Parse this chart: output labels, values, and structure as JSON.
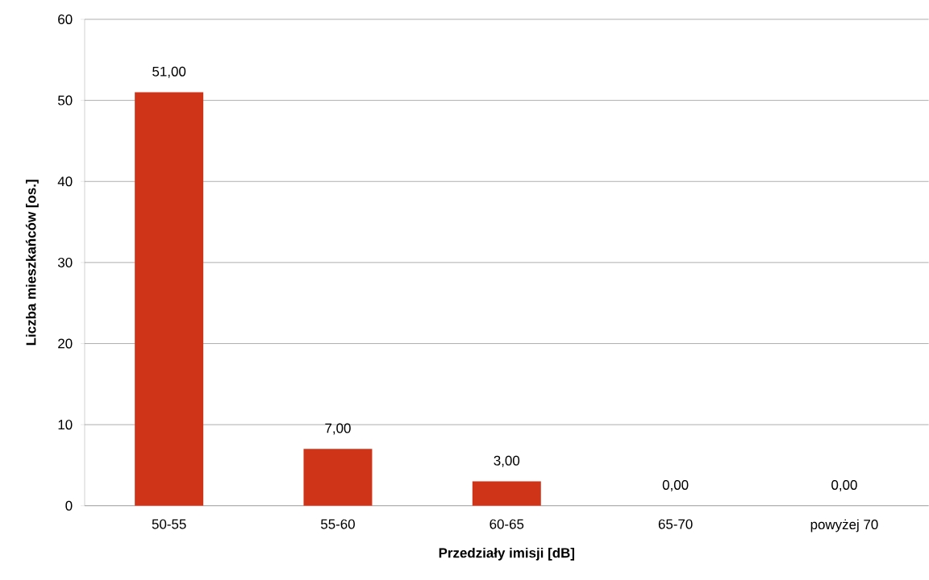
{
  "chart_data": {
    "type": "bar",
    "categories": [
      "50-55",
      "55-60",
      "60-65",
      "65-70",
      "powyżej 70"
    ],
    "values": [
      51,
      7,
      3,
      0,
      0
    ],
    "value_labels": [
      "51,00",
      "7,00",
      "3,00",
      "0,00",
      "0,00"
    ],
    "color": "#d03418",
    "xlabel": "Przedziały imisji [dB]",
    "ylabel": "Liczba mieszkańców [os.]",
    "ylim": [
      0,
      60
    ],
    "yticks": [
      0,
      10,
      20,
      30,
      40,
      50,
      60
    ],
    "grid": "y"
  }
}
